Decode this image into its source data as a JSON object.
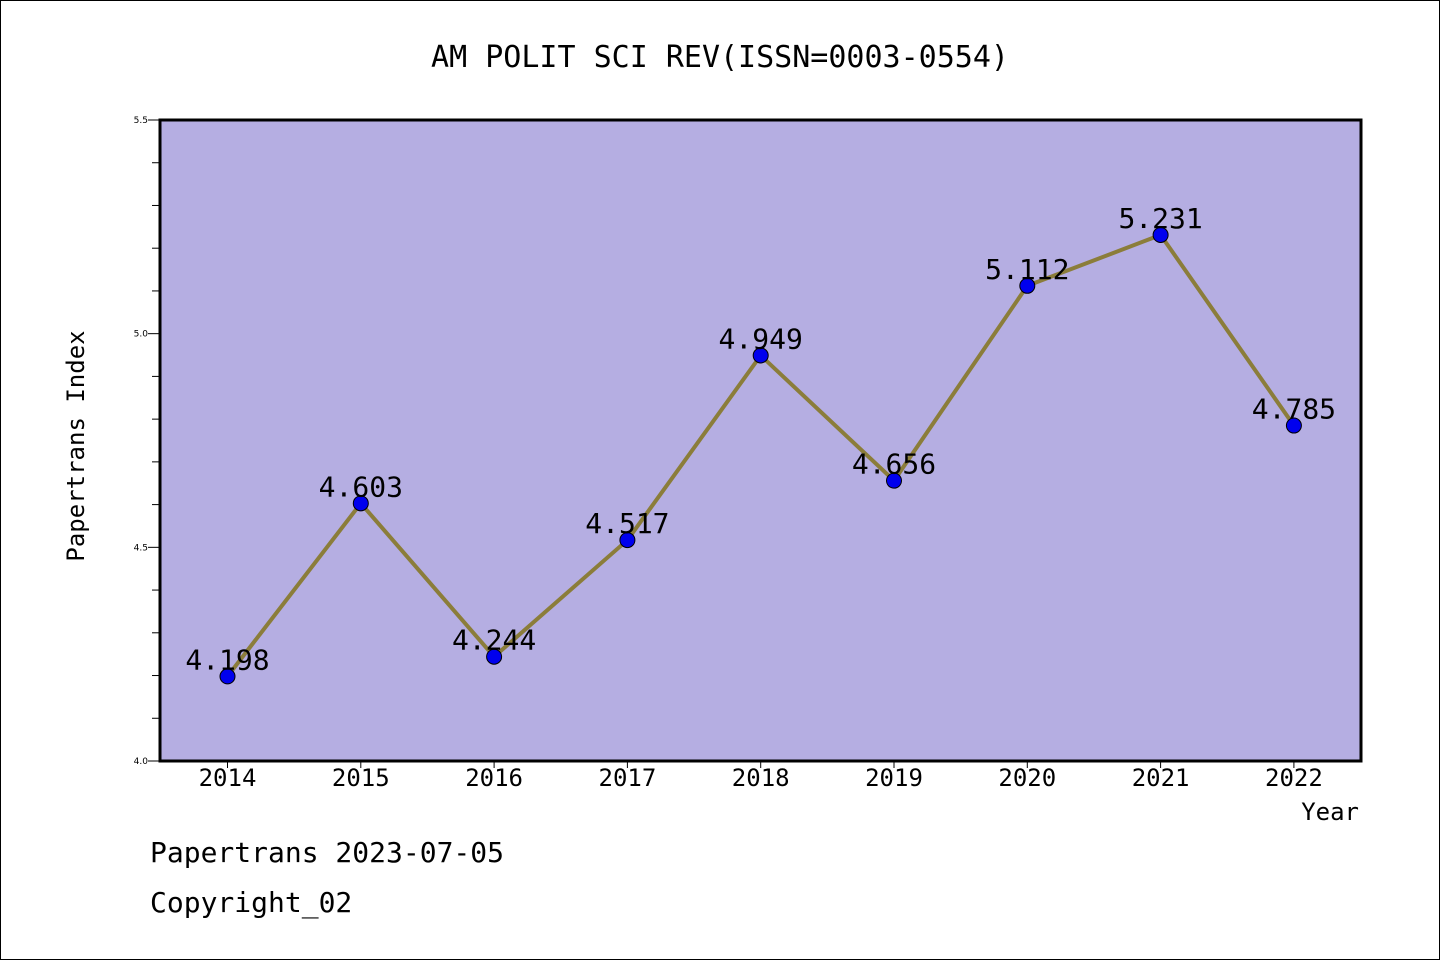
{
  "chart_data": {
    "type": "line",
    "title": "AM POLIT SCI REV(ISSN=0003-0554)",
    "xlabel": "Year",
    "ylabel": "Papertrans Index",
    "categories": [
      "2014",
      "2015",
      "2016",
      "2017",
      "2018",
      "2019",
      "2020",
      "2021",
      "2022"
    ],
    "series": [
      {
        "values": [
          4.198,
          4.603,
          4.244,
          4.517,
          4.949,
          4.656,
          5.112,
          5.231,
          4.785
        ],
        "labels": [
          "4.198",
          "4.603",
          "4.244",
          "4.517",
          "4.949",
          "4.656",
          "5.112",
          "5.231",
          "4.785"
        ]
      }
    ],
    "ylim": [
      4.0,
      5.5
    ],
    "yticks": [
      "4.0",
      "4.5",
      "5.0",
      "5.5"
    ],
    "grid": false,
    "colors": {
      "plot_background": "#b5aee2",
      "line": "#8b7d3a",
      "marker": "#0000ee"
    }
  },
  "footer": {
    "date_line": "Papertrans 2023-07-05",
    "copyright_line": "Copyright_02"
  }
}
